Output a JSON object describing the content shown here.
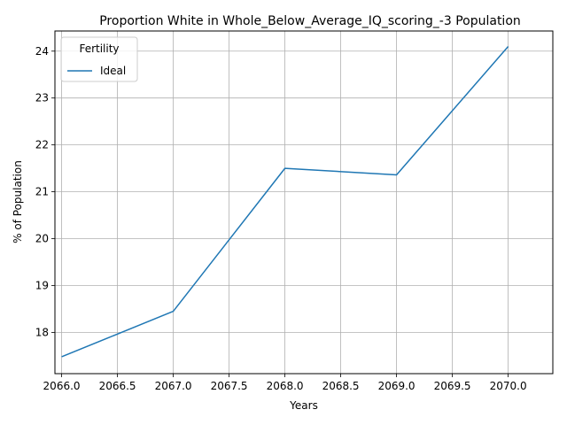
{
  "chart_data": {
    "type": "line",
    "title": "Proportion White in Whole_Below_Average_IQ_scoring_-3 Population",
    "xlabel": "Years",
    "ylabel": "% of Population",
    "x": [
      2066,
      2067,
      2068,
      2069,
      2070
    ],
    "series": [
      {
        "name": "Ideal",
        "values": [
          17.48,
          18.45,
          21.5,
          21.36,
          24.1
        ],
        "color": "#1f77b4"
      }
    ],
    "xlim": [
      2065.94,
      2070.4
    ],
    "ylim": [
      17.12,
      24.43
    ],
    "xticks": [
      "2066.0",
      "2066.5",
      "2067.0",
      "2067.5",
      "2068.0",
      "2068.5",
      "2069.0",
      "2069.5",
      "2070.0"
    ],
    "yticks": [
      "18",
      "19",
      "20",
      "21",
      "22",
      "23",
      "24"
    ],
    "grid": true,
    "legend": {
      "title": "Fertility",
      "placement": "top-left"
    }
  }
}
